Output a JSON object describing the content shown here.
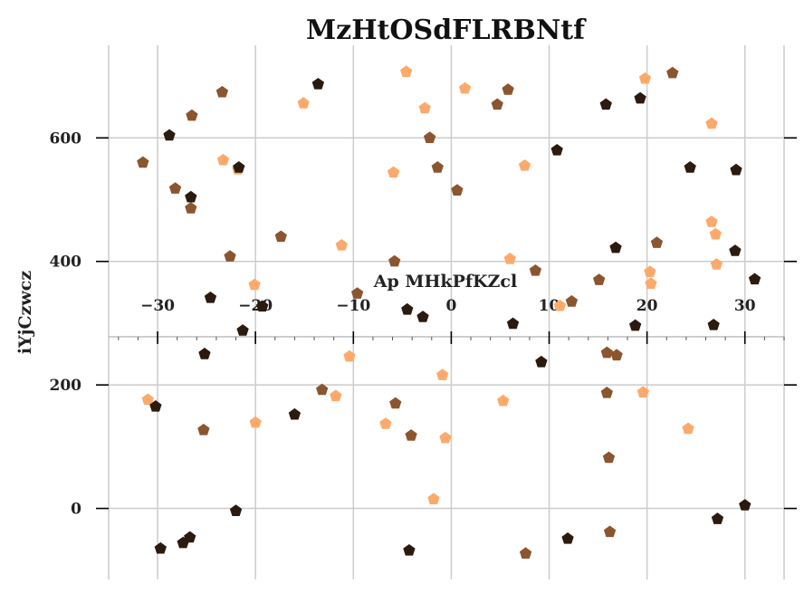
{
  "chart_data": {
    "type": "scatter",
    "title": "MzHtOSdFLRBNtf",
    "xlabel": "Ap MHkPfKZcl",
    "ylabel": "iYjCzwcz",
    "xlim": [
      -35,
      34
    ],
    "ylim": [
      -115,
      750
    ],
    "x_ticks": [
      -30,
      -20,
      -10,
      0,
      10,
      20,
      30
    ],
    "y_ticks": [
      0,
      200,
      400,
      600
    ],
    "x_axis_at_y": 278,
    "grid": true,
    "marker": "pentagon",
    "colors": {
      "dark": "#2b1a0e",
      "medium": "#8b5530",
      "light": "#fcaa6b"
    },
    "points": [
      {
        "x": -31.5,
        "y": 560,
        "c": "medium"
      },
      {
        "x": -28.8,
        "y": 604,
        "c": "dark"
      },
      {
        "x": -26.5,
        "y": 636,
        "c": "medium"
      },
      {
        "x": -28.2,
        "y": 518,
        "c": "medium"
      },
      {
        "x": -26.6,
        "y": 504,
        "c": "dark"
      },
      {
        "x": -26.6,
        "y": 486,
        "c": "medium"
      },
      {
        "x": -23.4,
        "y": 674,
        "c": "medium"
      },
      {
        "x": -23.3,
        "y": 564,
        "c": "light"
      },
      {
        "x": -21.8,
        "y": 549,
        "c": "light"
      },
      {
        "x": -21.7,
        "y": 552,
        "c": "dark"
      },
      {
        "x": -22.6,
        "y": 408,
        "c": "medium"
      },
      {
        "x": -17.4,
        "y": 440,
        "c": "medium"
      },
      {
        "x": -13.6,
        "y": 687,
        "c": "dark"
      },
      {
        "x": -15.1,
        "y": 656,
        "c": "light"
      },
      {
        "x": -11.2,
        "y": 426,
        "c": "light"
      },
      {
        "x": -20.1,
        "y": 362,
        "c": "light"
      },
      {
        "x": -24.6,
        "y": 341,
        "c": "dark"
      },
      {
        "x": -19.3,
        "y": 327,
        "c": "dark"
      },
      {
        "x": -21.3,
        "y": 288,
        "c": "dark"
      },
      {
        "x": -9.6,
        "y": 348,
        "c": "medium"
      },
      {
        "x": -5.8,
        "y": 400,
        "c": "medium"
      },
      {
        "x": -4.5,
        "y": 322,
        "c": "dark"
      },
      {
        "x": -2.9,
        "y": 310,
        "c": "dark"
      },
      {
        "x": -4.6,
        "y": 707,
        "c": "light"
      },
      {
        "x": -2.7,
        "y": 648,
        "c": "light"
      },
      {
        "x": -2.2,
        "y": 600,
        "c": "medium"
      },
      {
        "x": 1.4,
        "y": 680,
        "c": "light"
      },
      {
        "x": -5.9,
        "y": 544,
        "c": "light"
      },
      {
        "x": -1.4,
        "y": 552,
        "c": "medium"
      },
      {
        "x": 0.6,
        "y": 515,
        "c": "medium"
      },
      {
        "x": 4.7,
        "y": 654,
        "c": "medium"
      },
      {
        "x": 5.8,
        "y": 678,
        "c": "medium"
      },
      {
        "x": 7.5,
        "y": 555,
        "c": "light"
      },
      {
        "x": 10.8,
        "y": 580,
        "c": "dark"
      },
      {
        "x": 6.0,
        "y": 404,
        "c": "light"
      },
      {
        "x": 8.6,
        "y": 385,
        "c": "medium"
      },
      {
        "x": 6.3,
        "y": 299,
        "c": "dark"
      },
      {
        "x": 11.1,
        "y": 328,
        "c": "light"
      },
      {
        "x": 12.3,
        "y": 335,
        "c": "medium"
      },
      {
        "x": 15.1,
        "y": 370,
        "c": "medium"
      },
      {
        "x": 15.8,
        "y": 654,
        "c": "dark"
      },
      {
        "x": 19.3,
        "y": 664,
        "c": "dark"
      },
      {
        "x": 19.8,
        "y": 696,
        "c": "light"
      },
      {
        "x": 22.6,
        "y": 705,
        "c": "medium"
      },
      {
        "x": 26.6,
        "y": 623,
        "c": "light"
      },
      {
        "x": 24.4,
        "y": 552,
        "c": "dark"
      },
      {
        "x": 29.1,
        "y": 548,
        "c": "dark"
      },
      {
        "x": 26.6,
        "y": 464,
        "c": "light"
      },
      {
        "x": 27.0,
        "y": 444,
        "c": "light"
      },
      {
        "x": 16.8,
        "y": 422,
        "c": "dark"
      },
      {
        "x": 21.0,
        "y": 430,
        "c": "medium"
      },
      {
        "x": 29.0,
        "y": 417,
        "c": "dark"
      },
      {
        "x": 27.1,
        "y": 395,
        "c": "light"
      },
      {
        "x": 20.3,
        "y": 383,
        "c": "light"
      },
      {
        "x": 20.4,
        "y": 364,
        "c": "light"
      },
      {
        "x": 31.0,
        "y": 371,
        "c": "dark"
      },
      {
        "x": 18.8,
        "y": 296,
        "c": "dark"
      },
      {
        "x": 26.8,
        "y": 297,
        "c": "dark"
      },
      {
        "x": -25.2,
        "y": 250,
        "c": "dark"
      },
      {
        "x": -10.4,
        "y": 246,
        "c": "light"
      },
      {
        "x": -0.9,
        "y": 216,
        "c": "light"
      },
      {
        "x": 9.2,
        "y": 237,
        "c": "dark"
      },
      {
        "x": 15.9,
        "y": 252,
        "c": "medium"
      },
      {
        "x": 16.9,
        "y": 248,
        "c": "medium"
      },
      {
        "x": -31.0,
        "y": 176,
        "c": "light"
      },
      {
        "x": -30.2,
        "y": 165,
        "c": "dark"
      },
      {
        "x": -13.2,
        "y": 192,
        "c": "medium"
      },
      {
        "x": -11.8,
        "y": 182,
        "c": "light"
      },
      {
        "x": -5.7,
        "y": 170,
        "c": "medium"
      },
      {
        "x": 5.3,
        "y": 174,
        "c": "light"
      },
      {
        "x": 15.9,
        "y": 187,
        "c": "medium"
      },
      {
        "x": 19.6,
        "y": 188,
        "c": "light"
      },
      {
        "x": -16.0,
        "y": 152,
        "c": "dark"
      },
      {
        "x": -25.3,
        "y": 127,
        "c": "medium"
      },
      {
        "x": -20.0,
        "y": 139,
        "c": "light"
      },
      {
        "x": -6.7,
        "y": 137,
        "c": "light"
      },
      {
        "x": -4.1,
        "y": 118,
        "c": "medium"
      },
      {
        "x": -0.6,
        "y": 114,
        "c": "light"
      },
      {
        "x": 24.2,
        "y": 129,
        "c": "light"
      },
      {
        "x": 16.1,
        "y": 82,
        "c": "medium"
      },
      {
        "x": -1.8,
        "y": 15,
        "c": "light"
      },
      {
        "x": -22.0,
        "y": -4,
        "c": "dark"
      },
      {
        "x": 27.2,
        "y": -17,
        "c": "dark"
      },
      {
        "x": 30.0,
        "y": 5,
        "c": "dark"
      },
      {
        "x": -29.7,
        "y": -65,
        "c": "dark"
      },
      {
        "x": -27.4,
        "y": -56,
        "c": "dark"
      },
      {
        "x": -26.7,
        "y": -47,
        "c": "dark"
      },
      {
        "x": -4.3,
        "y": -68,
        "c": "dark"
      },
      {
        "x": 7.6,
        "y": -73,
        "c": "medium"
      },
      {
        "x": 11.9,
        "y": -49,
        "c": "dark"
      },
      {
        "x": 16.2,
        "y": -38,
        "c": "medium"
      }
    ]
  }
}
